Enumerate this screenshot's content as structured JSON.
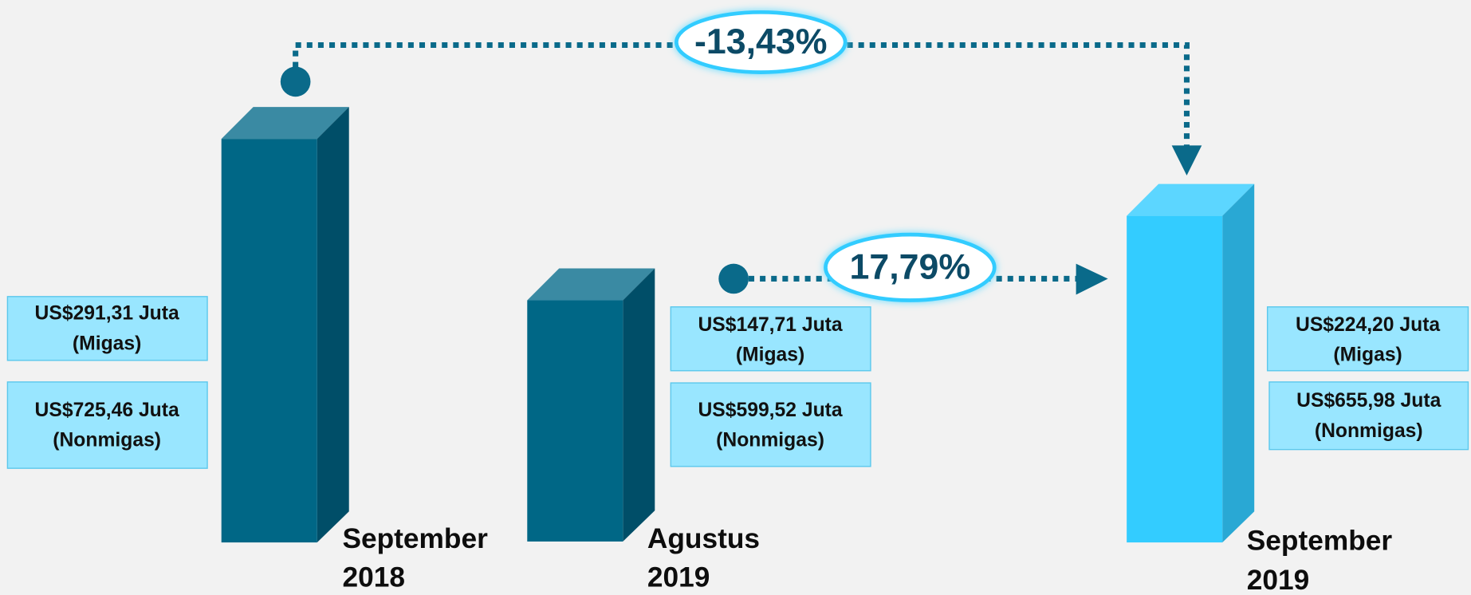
{
  "periods": [
    {
      "label": [
        "September",
        "2018"
      ],
      "migas": [
        "US$291,31 Juta",
        "(Migas)"
      ],
      "nonmigas": [
        "US$725,46 Juta",
        "(Nonmigas)"
      ]
    },
    {
      "label": [
        "Agustus",
        "2019"
      ],
      "migas": [
        "US$147,71 Juta",
        "(Migas)"
      ],
      "nonmigas": [
        "US$599,52 Juta",
        "(Nonmigas)"
      ]
    },
    {
      "label": [
        "September",
        "2019"
      ],
      "migas": [
        "US$224,20 Juta",
        "(Migas)"
      ],
      "nonmigas": [
        "US$655,98 Juta",
        "(Nonmigas)"
      ]
    }
  ],
  "changes": [
    "-13,43%",
    "17,79%"
  ]
}
